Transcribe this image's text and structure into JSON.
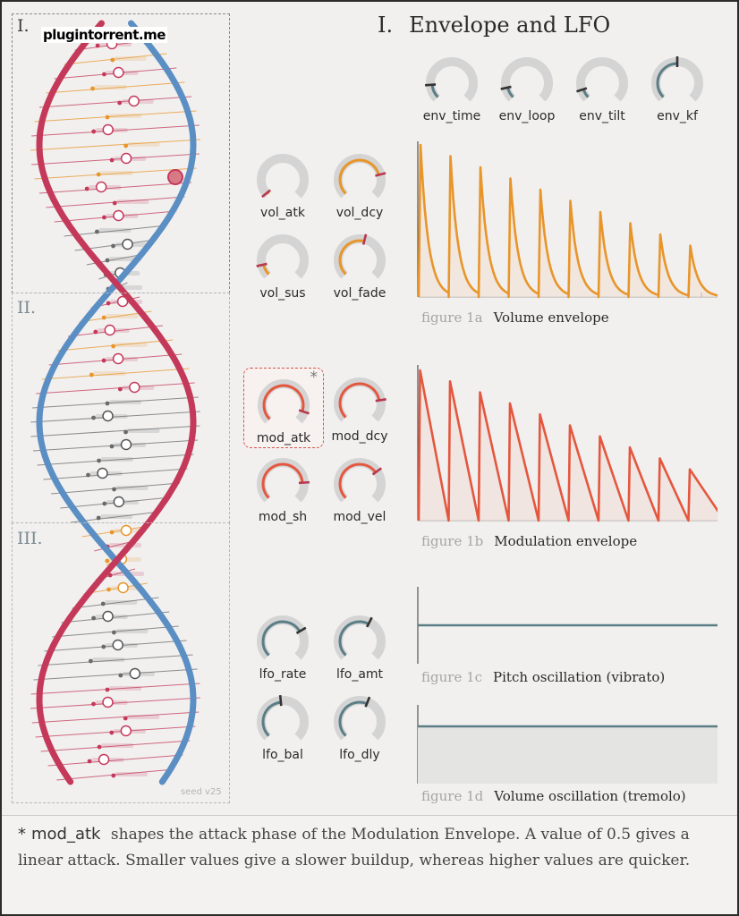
{
  "watermark": "plugintorrent.me",
  "sections": [
    {
      "label": "I."
    },
    {
      "label": "II."
    },
    {
      "label": "III."
    }
  ],
  "seed_label": "seed v25",
  "header": {
    "number": "I.",
    "title": "Envelope and LFO"
  },
  "colors": {
    "orange": "#e8952a",
    "red_orange": "#e4573f",
    "slate": "#5b7d86",
    "helix_red": "#c4395a",
    "helix_blue": "#5b8fc4"
  },
  "knob_groups": {
    "env": [
      {
        "label": "env_time",
        "value": 0.15
      },
      {
        "label": "env_loop",
        "value": 0.12
      },
      {
        "label": "env_tilt",
        "value": 0.1
      },
      {
        "label": "env_kf",
        "value": 0.5
      }
    ],
    "vol": [
      {
        "label": "vol_atk",
        "value": 0.02
      },
      {
        "label": "vol_dcy",
        "value": 0.78
      },
      {
        "label": "vol_sus",
        "value": 0.12
      },
      {
        "label": "vol_fade",
        "value": 0.55
      }
    ],
    "mod": [
      {
        "label": "mod_atk",
        "value": 0.9
      },
      {
        "label": "mod_dcy",
        "value": 0.8
      },
      {
        "label": "mod_sh",
        "value": 0.82
      },
      {
        "label": "mod_vel",
        "value": 0.7
      }
    ],
    "lfo": [
      {
        "label": "lfo_rate",
        "value": 0.72
      },
      {
        "label": "lfo_amt",
        "value": 0.6
      },
      {
        "label": "lfo_bal",
        "value": 0.48
      },
      {
        "label": "lfo_dly",
        "value": 0.58
      }
    ]
  },
  "figures": [
    {
      "id": "figure 1a",
      "caption": "Volume envelope"
    },
    {
      "id": "figure 1b",
      "caption": "Modulation envelope"
    },
    {
      "id": "figure 1c",
      "caption": "Pitch oscillation (vibrato)"
    },
    {
      "id": "figure 1d",
      "caption": "Volume oscillation (tremolo)"
    }
  ],
  "note": {
    "marker": "*",
    "param": "mod_atk",
    "text": "shapes the attack phase of the Modulation Envelope. A value of 0.5 gives a linear attack. Smaller values give a slower buildup, whereas higher values are quicker."
  }
}
